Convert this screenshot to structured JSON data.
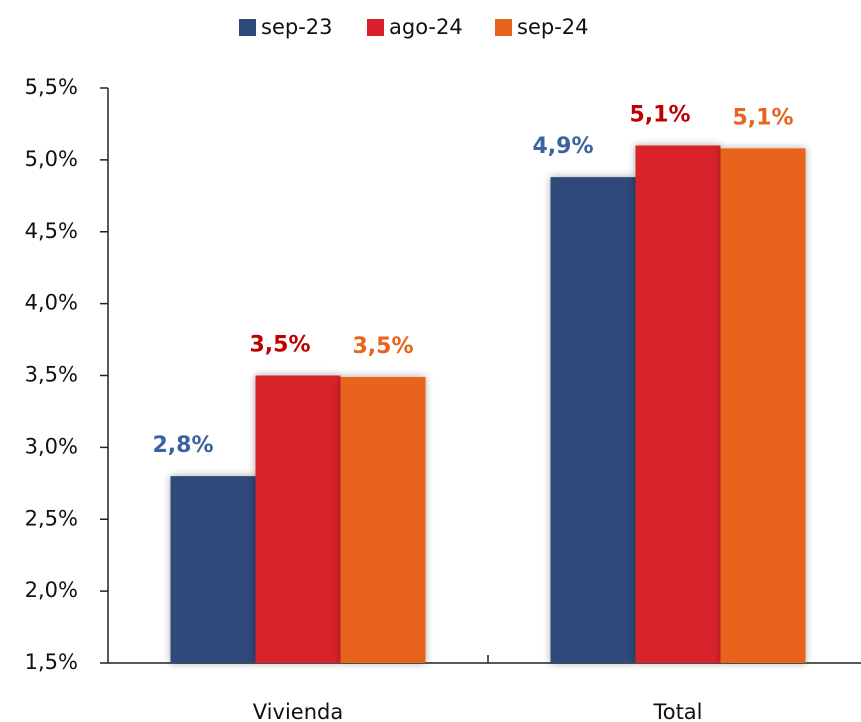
{
  "chart_data": {
    "type": "bar",
    "categories": [
      "Vivienda",
      "Total"
    ],
    "series": [
      {
        "name": "sep-23",
        "color": "#2e4a7a",
        "label_color": "#3c62a0",
        "values": [
          2.8,
          4.88
        ],
        "value_labels": [
          "2,8%",
          "4,9%"
        ]
      },
      {
        "name": "ago-24",
        "color": "#d9202a",
        "label_color": "#c00000",
        "values": [
          3.5,
          5.1
        ],
        "value_labels": [
          "3,5%",
          "5,1%"
        ]
      },
      {
        "name": "sep-24",
        "color": "#e8641e",
        "label_color": "#e8641e",
        "values": [
          3.49,
          5.08
        ],
        "value_labels": [
          "3,5%",
          "5,1%"
        ]
      }
    ],
    "ylim": [
      1.5,
      5.5
    ],
    "yticks": [
      {
        "value": 1.5,
        "label": "1,5%"
      },
      {
        "value": 2.0,
        "label": "2,0%"
      },
      {
        "value": 2.5,
        "label": "2,5%"
      },
      {
        "value": 3.0,
        "label": "3,0%"
      },
      {
        "value": 3.5,
        "label": "3,5%"
      },
      {
        "value": 4.0,
        "label": "4,0%"
      },
      {
        "value": 4.5,
        "label": "4,5%"
      },
      {
        "value": 5.0,
        "label": "5,0%"
      },
      {
        "value": 5.5,
        "label": "5,5%"
      }
    ],
    "legend": "top"
  }
}
